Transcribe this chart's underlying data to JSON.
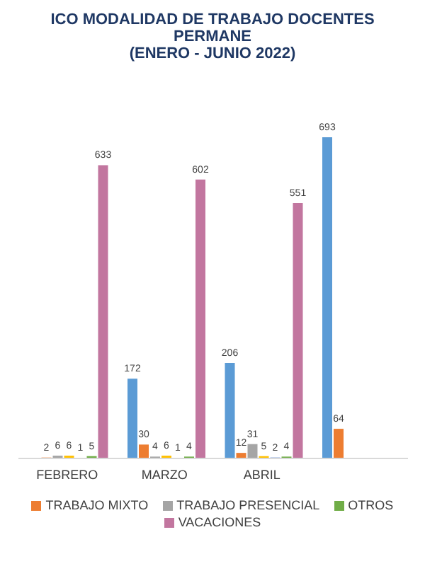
{
  "chart_data": {
    "type": "bar",
    "title": "ICO MODALIDAD DE TRABAJO DOCENTES PERMANE",
    "subtitle": "(ENERO - JUNIO 2022)",
    "categories": [
      "FEBRERO",
      "MARZO",
      "ABRIL",
      null
    ],
    "series": [
      {
        "color": "#5b9bd5",
        "values": [
          null,
          172,
          206,
          693
        ]
      },
      {
        "name": "TRABAJO MIXTO",
        "color": "#ed7d31",
        "values": [
          2,
          30,
          12,
          64
        ]
      },
      {
        "name": "TRABAJO PRESENCIAL",
        "color": "#a5a5a5",
        "values": [
          6,
          4,
          31,
          null
        ]
      },
      {
        "color": "#ffc000",
        "values": [
          6,
          6,
          5,
          null
        ]
      },
      {
        "color": "#4472c4",
        "values": [
          1,
          1,
          2,
          null
        ]
      },
      {
        "name": "OTROS",
        "color": "#70ad47",
        "values": [
          5,
          4,
          4,
          null
        ]
      },
      {
        "name": "VACACIONES",
        "color": "#c2769f",
        "values": [
          633,
          602,
          551,
          null
        ]
      }
    ],
    "tick_labels": "x",
    "data_labels": true,
    "legend": "bottom"
  }
}
